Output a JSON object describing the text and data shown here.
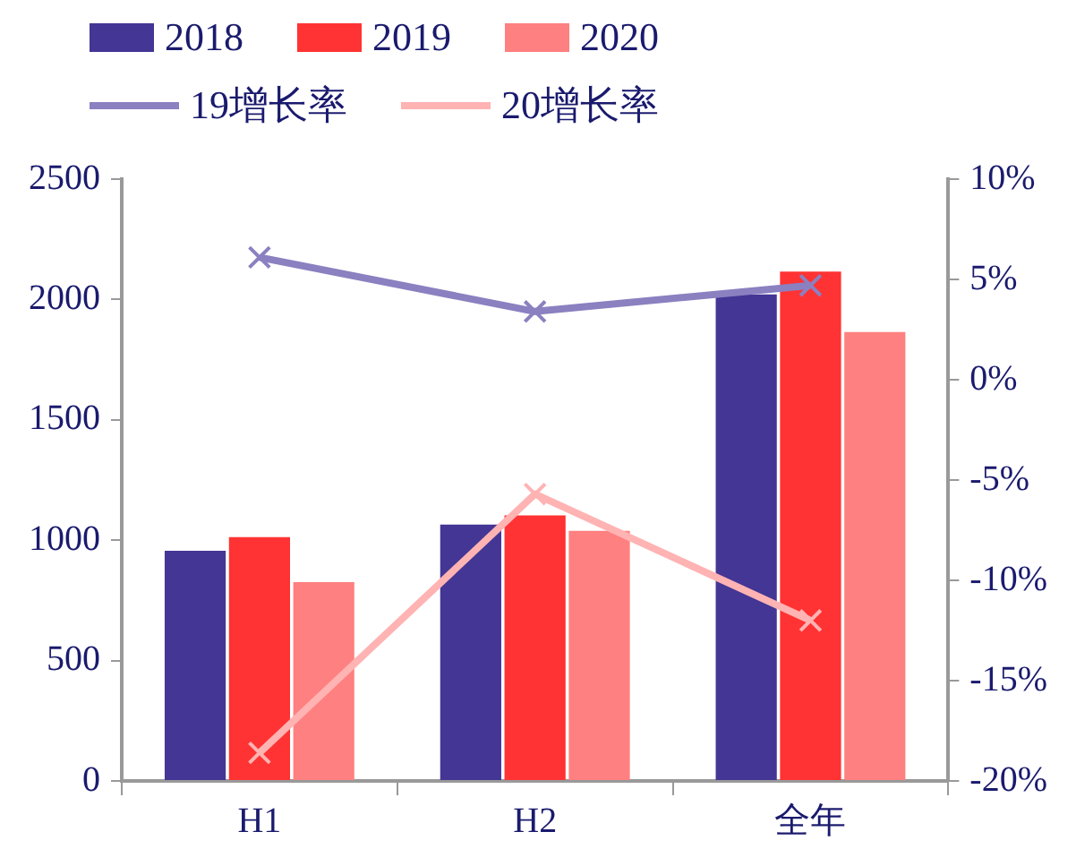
{
  "chart_data": {
    "type": "bar",
    "categories": [
      "H1",
      "H2",
      "全年"
    ],
    "series": [
      {
        "name": "2018",
        "color": "#433695",
        "values": [
          956,
          1065,
          2021
        ]
      },
      {
        "name": "2019",
        "color": "#ff3333",
        "values": [
          1013,
          1103,
          2116
        ]
      },
      {
        "name": "2020",
        "color": "#ff8080",
        "values": [
          826,
          1039,
          1865
        ]
      },
      {
        "name": "19增长率",
        "type": "line",
        "axis": "y2",
        "marker": "cross",
        "color": "#8b80c0",
        "values": [
          6.1,
          3.4,
          4.7
        ]
      },
      {
        "name": "20增长率",
        "type": "line",
        "axis": "y2",
        "marker": "cross",
        "color": "#ffb3b3",
        "values": [
          -18.6,
          -5.7,
          -12.0
        ]
      }
    ],
    "ylim": [
      0,
      2500
    ],
    "yticks": [
      0,
      500,
      1000,
      1500,
      2000,
      2500
    ],
    "y2lim": [
      -20,
      10
    ],
    "y2ticks": [
      {
        "value": -20,
        "label": "-20%"
      },
      {
        "value": -15,
        "label": "-15%"
      },
      {
        "value": -10,
        "label": "-10%"
      },
      {
        "value": -5,
        "label": "-5%"
      },
      {
        "value": 0,
        "label": "0%"
      },
      {
        "value": 5,
        "label": "5%"
      },
      {
        "value": 10,
        "label": "10%"
      }
    ],
    "grid": false,
    "legend": "top"
  }
}
